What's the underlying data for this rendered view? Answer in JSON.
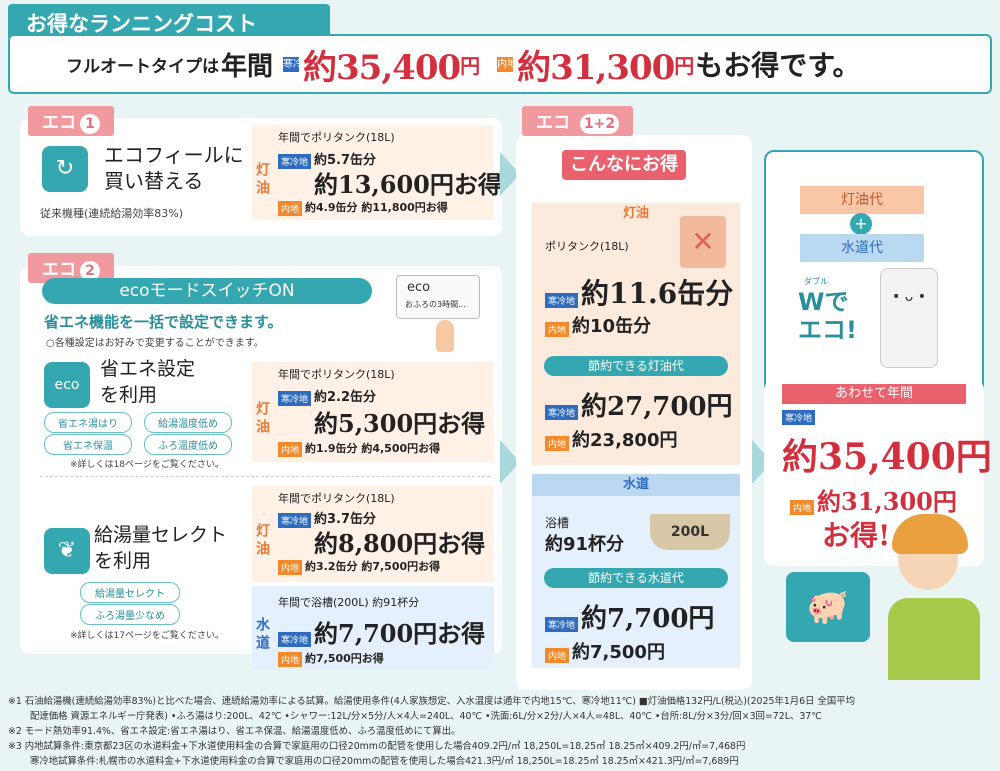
{
  "header": {
    "title": "お得なランニングコスト",
    "lead": "フルオートタイプは",
    "year": "年間",
    "cold_tag": "寒冷地",
    "cold_value": "約35,400",
    "inland_tag": "内地",
    "inland_value": "約31,300",
    "yen": "円",
    "tail": "もお得です。"
  },
  "eco1": {
    "tag": "エコ",
    "num": "1",
    "label": "エコフィールに\n買い替える",
    "note": "従来機種(連続給湯効率83%)",
    "side": "灯油",
    "line1": "年間でポリタンク(18L)",
    "cold_tag": "寒冷地",
    "cold_cans": "約5.7缶分",
    "cold_yen": "約13,600円お得",
    "inland_tag": "内地",
    "inland_line": "約4.9缶分 約11,800円お得"
  },
  "eco2": {
    "tag": "エコ",
    "num": "2",
    "switch": "ecoモードスイッチON",
    "eco_card": "eco",
    "eco_card_sub": "おふろの3時間...",
    "headline": "省エネ機能を一括で設定できます。",
    "sub": "○各種設定はお好みで変更することができます。",
    "item1": {
      "icon": "eco",
      "label": "省エネ設定\nを利用",
      "pills": [
        "省エネ湯はり",
        "給湯温度低め",
        "省エネ保温",
        "ふろ温度低め"
      ],
      "ref": "※詳しくは18ページをご覧ください。",
      "side": "灯油",
      "line1": "年間でポリタンク(18L)",
      "cold_tag": "寒冷地",
      "cold_cans": "約2.2缶分",
      "cold_yen": "約5,300円お得",
      "inland_tag": "内地",
      "inland_line": "約1.9缶分 約4,500円お得"
    },
    "item2": {
      "label": "給湯量セレクト\nを利用",
      "pills": [
        "給湯量セレクト",
        "ふろ湯量少なめ"
      ],
      "ref": "※詳しくは17ページをご覧ください。",
      "side": "灯油",
      "line1": "年間でポリタンク(18L)",
      "cold_tag": "寒冷地",
      "cold_cans": "約3.7缶分",
      "cold_yen": "約8,800円お得",
      "inland_tag": "内地",
      "inland_line": "約3.2缶分 約7,500円お得",
      "water_side": "水道",
      "water_line1": "年間で浴槽(200L) 約91杯分",
      "water_cold_tag": "寒冷地",
      "water_cold_yen": "約7,700円お得",
      "water_inland_tag": "内地",
      "water_inland_yen": "約7,500円お得"
    }
  },
  "combined": {
    "tag": "エコ",
    "nums": "1+2",
    "banner": "こんなにお得",
    "kerosene_head": "灯油",
    "tank": "ポリタンク(18L)",
    "cold_tag": "寒冷地",
    "cold_cans": "約11.6缶分",
    "inland_tag": "内地",
    "inland_cans": "約10缶分",
    "save_kero_head": "節約できる灯油代",
    "cold_kero_yen": "約27,700円",
    "inland_kero_yen": "約23,800円",
    "water_head": "水道",
    "bath": "浴槽",
    "bath_count": "約91杯分",
    "bath_size": "200L",
    "save_water_head": "節約できる水道代",
    "cold_water_yen": "約7,700円",
    "inland_water_yen": "約7,500円"
  },
  "right": {
    "kero": "灯油代",
    "plus": "+",
    "water": "水道代",
    "w_ruby": "ダブル",
    "w_text": "Wで\nエコ!",
    "total_head": "あわせて年間",
    "cold_tag": "寒冷地",
    "cold_total": "約35,400円",
    "inland_tag": "内地",
    "inland_total": "約31,300円",
    "otoku": "お得!"
  },
  "footnotes": [
    "※1 石油給湯機(連続給湯効率83%)と比べた場合、連続給湯効率による試算。給湯使用条件(4人家族想定、入水温度は通年で内地15℃、寒冷地11℃) ■灯油価格132円/L(税込)(2025年1月6日 全国平均",
    "配達価格 資源エネルギー庁発表) •ふろ湯はり:200L、42℃ •シャワー:12L/分×5分/人×4人=240L、40℃ •洗面:6L/分×2分/人×4人=48L、40℃ •台所:8L/分×3分/回×3回=72L、37℃",
    "※2 モード熱効率91.4%、省エネ設定:省エネ湯はり、省エネ保温、給湯温度低め、ふろ温度低めにて算出。",
    "※3 内地試算条件:東京都23区の水道料金+下水道使用料金の合算で家庭用の口径20mmの配管を使用した場合409.2円/㎥ 18,250L=18.25㎥ 18.25㎥×409.2円/㎥=7,468円",
    "寒冷地試算条件:札幌市の水道料金+下水道使用料金の合算で家庭用の口径20mmの配管を使用した場合421.3円/㎥ 18,250L=18.25㎥ 18.25㎥×421.3円/㎥=7,689円"
  ]
}
